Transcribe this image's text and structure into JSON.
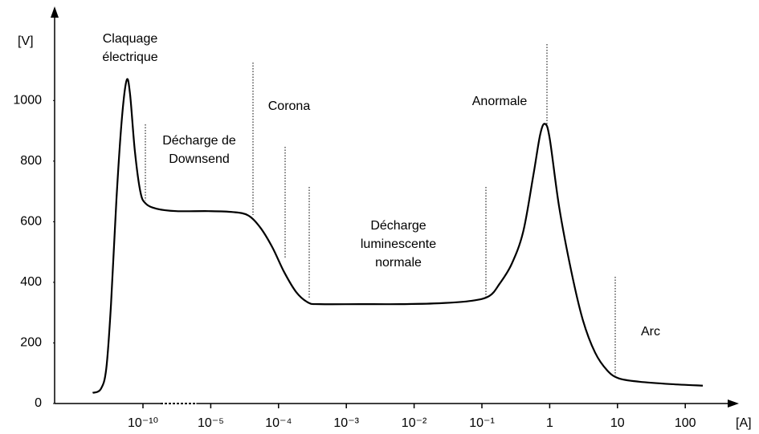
{
  "chart_data": {
    "type": "line",
    "x_label": "[A]",
    "y_label": "[V]",
    "annotations": [
      [
        "Claquage",
        "électrique"
      ],
      [
        "Décharge de",
        "Downsend"
      ],
      [
        "Corona"
      ],
      [
        "Décharge",
        "luminescente",
        "normale"
      ],
      [
        "Anormale"
      ],
      [
        "Arc"
      ]
    ],
    "color": "#000000",
    "xlim": [
      -11.3,
      2.7
    ],
    "xticks": [
      {
        "value": -10,
        "label": "10⁻¹⁰"
      },
      {
        "value": -5,
        "label": "10⁻⁵"
      },
      {
        "value": -4,
        "label": "10⁻⁴"
      },
      {
        "value": -3,
        "label": "10⁻³"
      },
      {
        "value": -2,
        "label": "10⁻²"
      },
      {
        "value": -1,
        "label": "10⁻¹"
      },
      {
        "value": 0,
        "label": "1"
      },
      {
        "value": 1,
        "label": "10"
      },
      {
        "value": 2,
        "label": "100"
      }
    ],
    "axis_break": [
      -10,
      -5
    ],
    "ylim": [
      0,
      1300
    ],
    "yticks": [
      0,
      200,
      400,
      600,
      800,
      1000
    ],
    "x": [
      -10.74,
      -10.62,
      -10.54,
      -10.47,
      -10.39,
      -10.31,
      -10.24,
      -10.19,
      -10.12,
      -10.04,
      -9.82,
      -9.0,
      -7.53,
      -5.18,
      -4.68,
      -4.45,
      -4.27,
      -4.09,
      -3.92,
      -3.74,
      -3.56,
      -3.39,
      -2.8,
      -2.21,
      -1.62,
      -1.15,
      -0.89,
      -0.74,
      -0.56,
      -0.39,
      -0.24,
      -0.14,
      -0.07,
      0.0,
      0.14,
      0.32,
      0.49,
      0.67,
      0.85,
      1.02,
      1.32,
      1.79,
      2.26
    ],
    "values": [
      35,
      48,
      115,
      328,
      675,
      941,
      1067,
      1021,
      835,
      701,
      661,
      643,
      635,
      635,
      632,
      621,
      581,
      515,
      435,
      368,
      333,
      328,
      328,
      328,
      331,
      339,
      355,
      395,
      461,
      568,
      755,
      888,
      923,
      875,
      648,
      435,
      275,
      168,
      109,
      83,
      72,
      64,
      59
    ]
  }
}
